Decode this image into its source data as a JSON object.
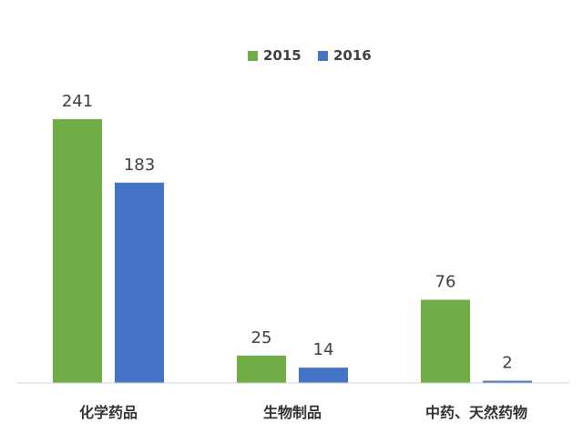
{
  "chart_data": {
    "type": "bar",
    "categories": [
      "化学药品",
      "生物制品",
      "中药、天然药物"
    ],
    "series": [
      {
        "name": "2015",
        "values": [
          241,
          25,
          76
        ],
        "color": "#70ad47"
      },
      {
        "name": "2016",
        "values": [
          183,
          14,
          2
        ],
        "color": "#4472c4"
      }
    ],
    "title": "",
    "xlabel": "",
    "ylabel": "",
    "ylim": [
      0,
      241
    ],
    "grid": false,
    "legend": "top-center",
    "data_labels": true
  }
}
